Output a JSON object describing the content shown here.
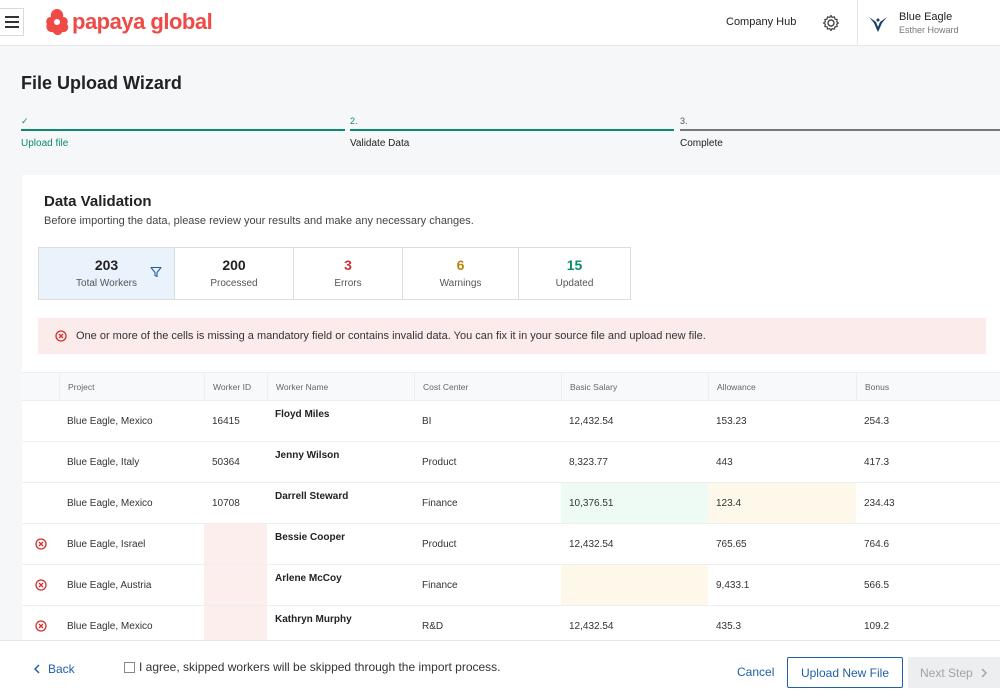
{
  "header": {
    "logo_text": "papaya global",
    "company_hub": "Company Hub",
    "user_company": "Blue Eagle",
    "user_name": "Esther Howard"
  },
  "page_title": "File Upload Wizard",
  "stepper": [
    {
      "mark": "✓",
      "label": "Upload file"
    },
    {
      "mark": "2.",
      "label": "Validate Data"
    },
    {
      "mark": "3.",
      "label": "Complete"
    }
  ],
  "validation": {
    "title": "Data Validation",
    "subtitle": "Before importing the data, please review your results and make any necessary changes.",
    "stats": [
      {
        "value": "203",
        "label": "Total Workers"
      },
      {
        "value": "200",
        "label": "Processed"
      },
      {
        "value": "3",
        "label": "Errors"
      },
      {
        "value": "6",
        "label": "Warnings"
      },
      {
        "value": "15",
        "label": "Updated"
      }
    ],
    "alert": "One or more of the cells is missing a mandatory field or contains invalid data. You can fix it in your source file and upload new file."
  },
  "table": {
    "columns": [
      "Project",
      "Worker ID",
      "Worker Name",
      "Cost Center",
      "Basic Salary",
      "Allowance",
      "Bonus"
    ],
    "rows": [
      {
        "project": "Blue Eagle, Mexico",
        "worker_id": "16415",
        "name": "Floyd Miles",
        "cost_center": "BI",
        "salary": "12,432.54",
        "allowance": "153.23",
        "bonus": "254.3"
      },
      {
        "project": "Blue Eagle, Italy",
        "worker_id": "50364",
        "name": "Jenny Wilson",
        "cost_center": "Product",
        "salary": "8,323.77",
        "allowance": "443",
        "bonus": "417.3"
      },
      {
        "project": "Blue Eagle, Mexico",
        "worker_id": "10708",
        "name": "Darrell Steward",
        "cost_center": "Finance",
        "salary": "10,376.51",
        "allowance": "123.4",
        "bonus": "234.43"
      },
      {
        "project": "Blue Eagle, Israel",
        "worker_id": "",
        "name": "Bessie Cooper",
        "cost_center": "Product",
        "salary": "12,432.54",
        "allowance": "765.65",
        "bonus": "764.6"
      },
      {
        "project": "Blue Eagle, Austria",
        "worker_id": "",
        "name": "Arlene McCoy",
        "cost_center": "Finance",
        "salary": "",
        "allowance": "9,433.1",
        "bonus": "566.5"
      },
      {
        "project": "Blue Eagle, Mexico",
        "worker_id": "",
        "name": "Kathryn Murphy",
        "cost_center": "R&D",
        "salary": "12,432.54",
        "allowance": "435.3",
        "bonus": "109.2"
      }
    ]
  },
  "footer": {
    "back": "Back",
    "agree": "I agree, skipped workers will be skipped through the import process.",
    "cancel": "Cancel",
    "upload": "Upload New File",
    "next": "Next Step"
  },
  "colors": {
    "brand": "#ef4a45",
    "accent_green": "#0b8a6e",
    "link_blue": "#1f5fa8",
    "error_red": "#d0312d",
    "warning_amber": "#b8860b",
    "updated_teal": "#0b8a6e"
  }
}
